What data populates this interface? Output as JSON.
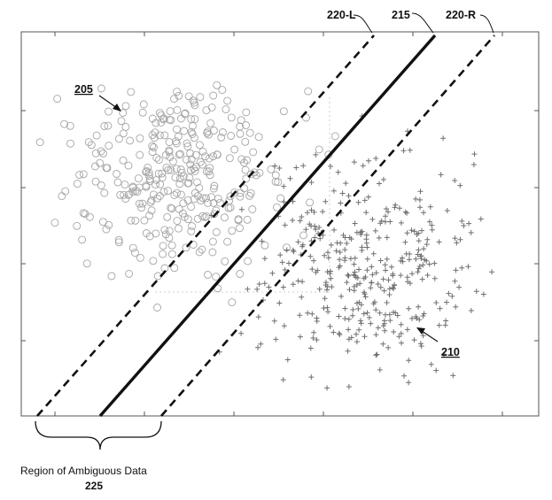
{
  "labels": {
    "boundary_left": "220-L",
    "decision_line": "215",
    "boundary_right": "220-R",
    "class_circles": "205",
    "class_crosses": "210"
  },
  "caption": {
    "text": "Region of Ambiguous Data",
    "number": "225"
  },
  "colors": {
    "ink": "#111111",
    "circle_marker": "#a6a6a6",
    "cross_marker": "#6f6f6f",
    "frame": "#555555",
    "guide": "#cfcfcf"
  },
  "icons": {
    "class_circles_marker": "circle-marker",
    "class_crosses_marker": "plus-marker",
    "region_brace": "curly-brace"
  }
}
